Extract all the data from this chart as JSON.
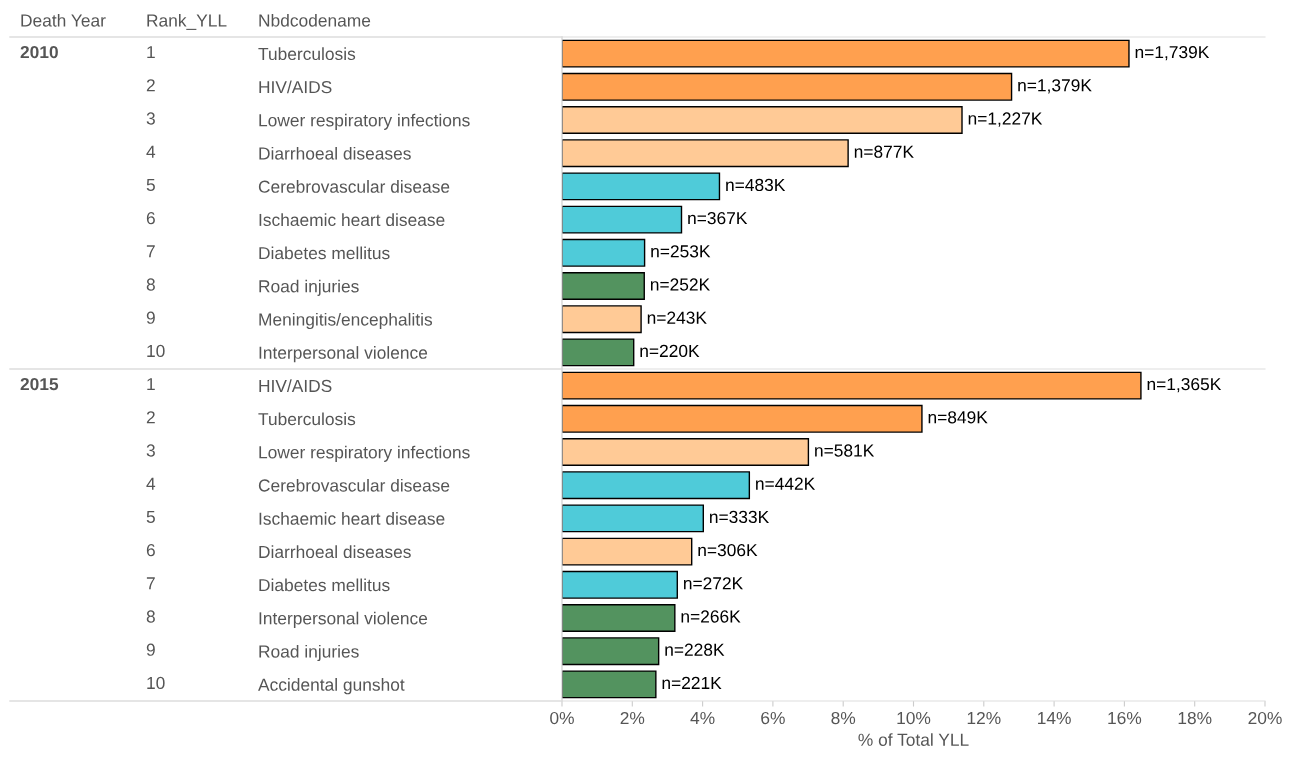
{
  "chart_data": [
    {
      "type": "bar",
      "orientation": "horizontal",
      "ylabel": "Nbdcodename",
      "categories": [
        "Tuberculosis",
        "HIV/AIDS",
        "Lower respiratory infections",
        "Diarrhoeal diseases",
        "Cerebrovascular disease",
        "Ischaemic heart disease",
        "Diabetes mellitus",
        "Road injuries",
        "Meningitis/encephalitis",
        "Interpersonal violence"
      ],
      "values": [
        16.13,
        12.79,
        11.38,
        8.14,
        4.48,
        3.4,
        2.35,
        2.34,
        2.25,
        2.04
      ],
      "colors": [
        "#ffa04f",
        "#ffa04f",
        "#ffca96",
        "#ffca96",
        "#4fcbd9",
        "#4fcbd9",
        "#4fcbd9",
        "#53935f",
        "#ffca96",
        "#53935f"
      ],
      "annotations": [
        "2010",
        "1",
        "2",
        "3",
        "4",
        "5",
        "6",
        "7",
        "8",
        "9",
        "10",
        "Death Year",
        "Rank_YLL",
        {
          "text": "n=1,739K",
          "x": 16.13,
          "y": "Tuberculosis"
        },
        {
          "text": "n=1,379K",
          "x": 12.79,
          "y": "HIV/AIDS"
        },
        {
          "text": "n=1,227K",
          "x": 11.38,
          "y": "Lower respiratory infections"
        },
        {
          "text": "n=877K",
          "x": 8.14,
          "y": "Diarrhoeal diseases"
        },
        {
          "text": "n=483K",
          "x": 4.48,
          "y": "Cerebrovascular disease"
        },
        {
          "text": "n=367K",
          "x": 3.4,
          "y": "Ischaemic heart disease"
        },
        {
          "text": "n=253K",
          "x": 2.35,
          "y": "Diabetes mellitus"
        },
        {
          "text": "n=252K",
          "x": 2.34,
          "y": "Road injuries"
        },
        {
          "text": "n=243K",
          "x": 2.25,
          "y": "Meningitis/encephalitis"
        },
        {
          "text": "n=220K",
          "x": 2.04,
          "y": "Interpersonal violence"
        }
      ],
      "xlim": [
        0,
        20
      ],
      "tick_labels": "y",
      "grid": false,
      "legend": false
    },
    {
      "type": "bar",
      "orientation": "horizontal",
      "xlabel": "% of Total YLL",
      "categories": [
        "HIV/AIDS",
        "Tuberculosis",
        "Lower respiratory infections",
        "Cerebrovascular disease",
        "Ischaemic heart disease",
        "Diarrhoeal diseases",
        "Diabetes mellitus",
        "Interpersonal violence",
        "Road injuries",
        "Accidental gunshot"
      ],
      "values": [
        16.47,
        10.24,
        7.01,
        5.33,
        4.02,
        3.69,
        3.28,
        3.21,
        2.75,
        2.67
      ],
      "colors": [
        "#ffa04f",
        "#ffa04f",
        "#ffca96",
        "#4fcbd9",
        "#4fcbd9",
        "#ffca96",
        "#4fcbd9",
        "#53935f",
        "#53935f",
        "#53935f"
      ],
      "annotations": [
        "2015",
        "1",
        "2",
        "3",
        "4",
        "5",
        "6",
        "7",
        "8",
        "9",
        "10",
        {
          "text": "n=1,365K",
          "x": 16.47,
          "y": "HIV/AIDS"
        },
        {
          "text": "n=849K",
          "x": 10.24,
          "y": "Tuberculosis"
        },
        {
          "text": "n=581K",
          "x": 7.01,
          "y": "Lower respiratory infections"
        },
        {
          "text": "n=442K",
          "x": 5.33,
          "y": "Cerebrovascular disease"
        },
        {
          "text": "n=333K",
          "x": 4.02,
          "y": "Ischaemic heart disease"
        },
        {
          "text": "n=306K",
          "x": 3.69,
          "y": "Diarrhoeal diseases"
        },
        {
          "text": "n=272K",
          "x": 3.28,
          "y": "Diabetes mellitus"
        },
        {
          "text": "n=266K",
          "x": 3.21,
          "y": "Interpersonal violence"
        },
        {
          "text": "n=228K",
          "x": 2.75,
          "y": "Road injuries"
        },
        {
          "text": "n=221K",
          "x": 2.67,
          "y": "Accidental gunshot"
        }
      ],
      "xlim": [
        0,
        20
      ],
      "xticks": [
        {
          "value": 0,
          "label": "0%"
        },
        {
          "value": 2,
          "label": "2%"
        },
        {
          "value": 4,
          "label": "4%"
        },
        {
          "value": 6,
          "label": "6%"
        },
        {
          "value": 8,
          "label": "8%"
        },
        {
          "value": 10,
          "label": "10%"
        },
        {
          "value": 12,
          "label": "12%"
        },
        {
          "value": 14,
          "label": "14%"
        },
        {
          "value": 16,
          "label": "16%"
        },
        {
          "value": 18,
          "label": "18%"
        },
        {
          "value": 20,
          "label": "20%"
        }
      ],
      "grid": false,
      "legend": false
    }
  ]
}
